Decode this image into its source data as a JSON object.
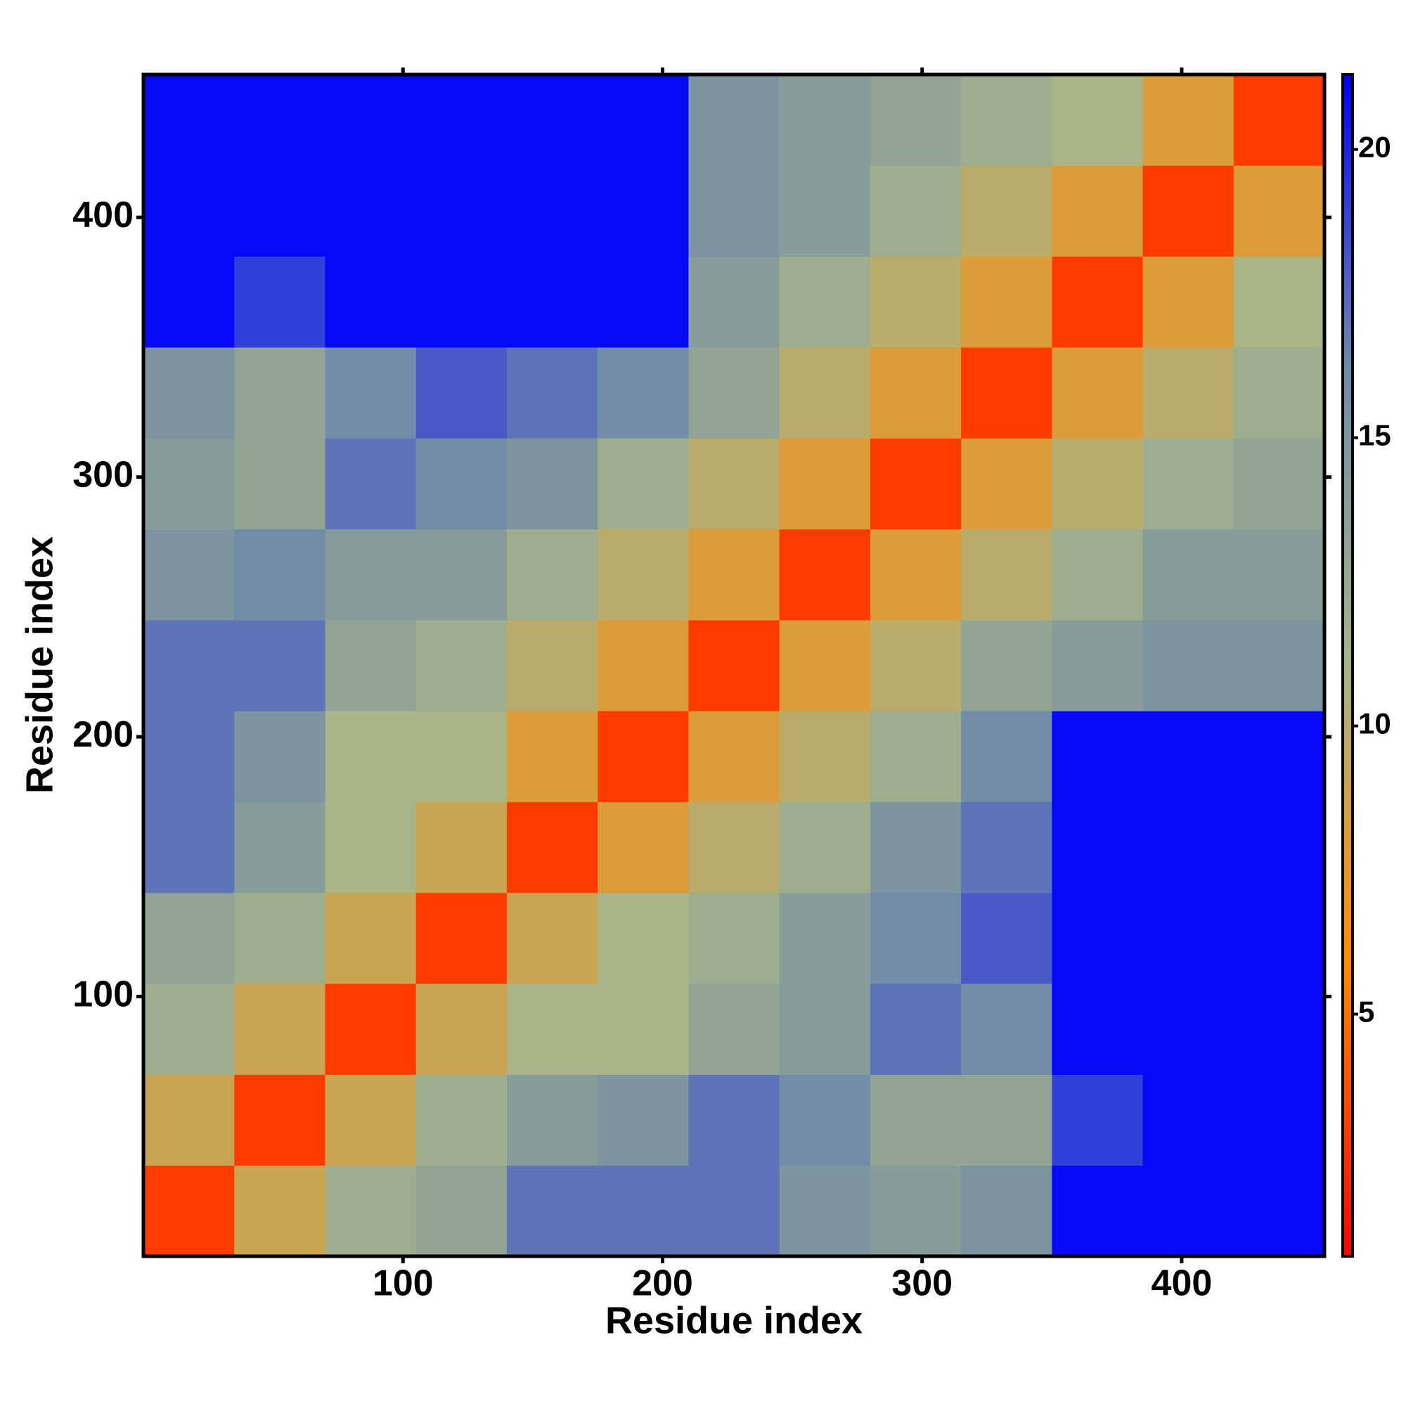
{
  "chart_data": {
    "type": "heatmap",
    "x_label": "Residue index",
    "y_label": "Residue index",
    "xbins": [
      0,
      35,
      70,
      105,
      140,
      175,
      210,
      245,
      280,
      315,
      350,
      385,
      420,
      455
    ],
    "ybins": [
      0,
      35,
      70,
      105,
      140,
      175,
      210,
      245,
      280,
      315,
      350,
      385,
      420,
      455
    ],
    "values": [
      [
        3,
        9,
        12,
        13,
        17,
        17,
        17,
        15,
        14,
        15,
        21,
        21,
        21
      ],
      [
        9,
        3,
        9,
        12,
        14,
        15,
        17,
        16,
        13,
        13,
        19,
        21,
        21
      ],
      [
        12,
        9,
        3,
        9,
        11,
        11,
        13,
        14,
        17,
        16,
        21,
        21,
        21
      ],
      [
        13,
        12,
        9,
        3,
        9,
        11,
        12,
        14,
        16,
        18,
        21,
        21,
        21
      ],
      [
        17,
        14,
        11,
        9,
        3,
        8,
        10,
        12,
        15,
        17,
        21,
        21,
        21
      ],
      [
        17,
        15,
        11,
        11,
        8,
        3,
        8,
        10,
        12,
        16,
        21,
        21,
        21
      ],
      [
        17,
        17,
        13,
        12,
        10,
        8,
        3,
        8,
        10,
        13,
        14,
        15,
        15
      ],
      [
        15,
        16,
        14,
        14,
        12,
        10,
        8,
        3,
        8,
        10,
        12,
        14,
        14
      ],
      [
        14,
        13,
        17,
        16,
        15,
        12,
        10,
        8,
        3,
        8,
        10,
        12,
        13
      ],
      [
        15,
        13,
        16,
        18,
        17,
        16,
        13,
        10,
        8,
        3,
        8,
        10,
        12
      ],
      [
        21,
        19,
        21,
        21,
        21,
        21,
        14,
        12,
        10,
        8,
        3,
        8,
        11
      ],
      [
        21,
        21,
        21,
        21,
        21,
        21,
        15,
        14,
        12,
        10,
        8,
        3,
        8
      ],
      [
        21,
        21,
        21,
        21,
        21,
        21,
        15,
        14,
        13,
        12,
        11,
        8,
        3
      ]
    ],
    "xlim": [
      0,
      455
    ],
    "ylim": [
      0,
      455
    ],
    "xticks": [
      100,
      200,
      300,
      400
    ],
    "yticks": [
      100,
      200,
      300,
      400
    ],
    "clim": [
      0.8,
      21.3
    ],
    "cticks": [
      5,
      10,
      15,
      20
    ],
    "colorscale": [
      "#ff0000",
      "#ff8c00",
      "#a8b488",
      "#6f8ca8",
      "#0000ff"
    ]
  }
}
